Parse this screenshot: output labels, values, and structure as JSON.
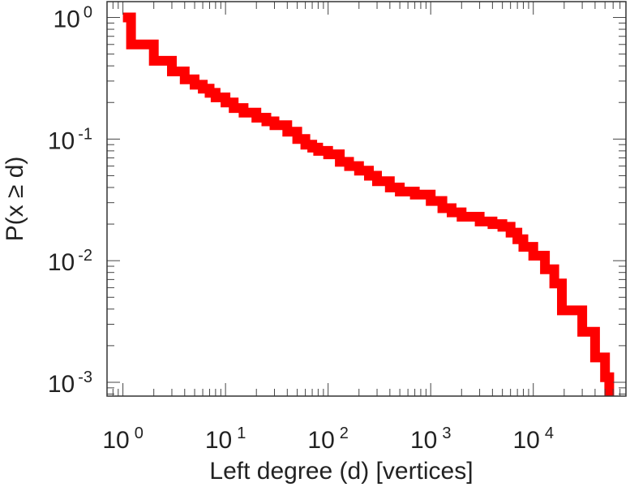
{
  "chart_data": {
    "type": "line",
    "step": true,
    "xscale": "log",
    "yscale": "log",
    "xlabel": "Left degree (d) [vertices]",
    "ylabel": "P(x ≥ d)",
    "xlim": [
      0.7,
      80000
    ],
    "ylim": [
      0.00077,
      1.35
    ],
    "grid": false,
    "legend": "none",
    "x_ticks": [
      {
        "value": 1,
        "base": "10",
        "exp": "0"
      },
      {
        "value": 10,
        "base": "10",
        "exp": "1"
      },
      {
        "value": 100,
        "base": "10",
        "exp": "2"
      },
      {
        "value": 1000,
        "base": "10",
        "exp": "3"
      },
      {
        "value": 10000,
        "base": "10",
        "exp": "4"
      }
    ],
    "y_ticks": [
      {
        "value": 1,
        "base": "10",
        "exp": "0"
      },
      {
        "value": 0.1,
        "base": "10",
        "exp": "-1"
      },
      {
        "value": 0.01,
        "base": "10",
        "exp": "-2"
      },
      {
        "value": 0.001,
        "base": "10",
        "exp": "-3"
      }
    ],
    "series": [
      {
        "color": "#ff0000",
        "x": [
          1,
          1.2,
          2,
          3,
          4,
          5,
          6,
          7,
          8,
          10,
          12,
          15,
          20,
          25,
          30,
          40,
          50,
          60,
          70,
          80,
          100,
          130,
          160,
          200,
          250,
          300,
          400,
          500,
          700,
          1000,
          1300,
          1600,
          2000,
          3000,
          4000,
          5000,
          6000,
          7000,
          8000,
          10000,
          13000,
          16000,
          19000,
          30000,
          40000,
          50000,
          55000
        ],
        "y": [
          1,
          0.6,
          0.44,
          0.36,
          0.31,
          0.28,
          0.26,
          0.24,
          0.22,
          0.2,
          0.18,
          0.165,
          0.15,
          0.14,
          0.13,
          0.115,
          0.1,
          0.09,
          0.085,
          0.08,
          0.075,
          0.065,
          0.06,
          0.055,
          0.05,
          0.045,
          0.04,
          0.037,
          0.035,
          0.031,
          0.027,
          0.025,
          0.023,
          0.021,
          0.02,
          0.019,
          0.017,
          0.015,
          0.013,
          0.011,
          0.0085,
          0.0065,
          0.0039,
          0.0026,
          0.0016,
          0.0011,
          0.00077
        ]
      }
    ]
  }
}
